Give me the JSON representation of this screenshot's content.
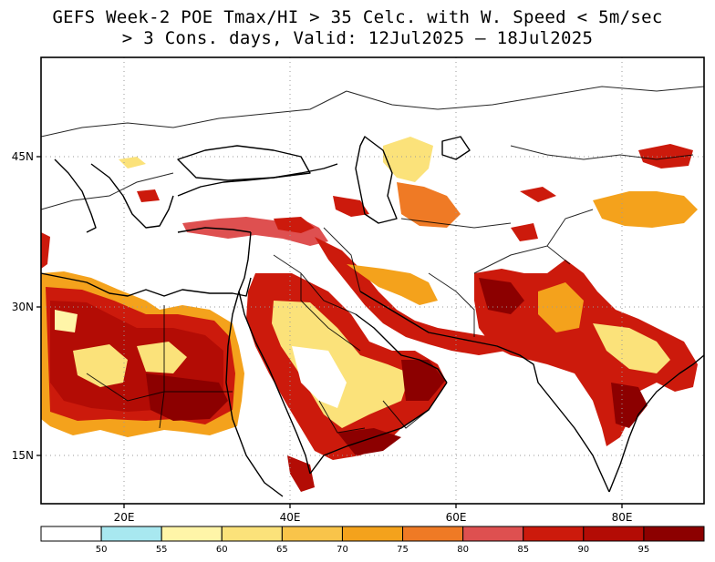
{
  "title": {
    "line1": "GEFS Week-2 POE Tmax/HI > 35 Celc. with W. Speed < 5m/sec",
    "line2": "> 3 Cons. days, Valid: 12Jul2025 – 18Jul2025"
  },
  "map": {
    "lon_range": [
      9,
      89
    ],
    "lat_range": [
      10,
      54
    ],
    "lat_labels": [
      "45N",
      "30N",
      "15N"
    ],
    "lon_labels": [
      "20E",
      "40E",
      "60E",
      "80E"
    ],
    "grid": "dotted"
  },
  "colorbar": {
    "labels": [
      "50",
      "55",
      "60",
      "65",
      "70",
      "75",
      "80",
      "85",
      "90",
      "95"
    ],
    "colors": [
      "#ffffff",
      "#a8e8f0",
      "#fff5a8",
      "#fbe27a",
      "#f9c44a",
      "#f4a21c",
      "#ef7a25",
      "#de5050",
      "#cc1a0c",
      "#b30c05",
      "#8c0000"
    ]
  }
}
